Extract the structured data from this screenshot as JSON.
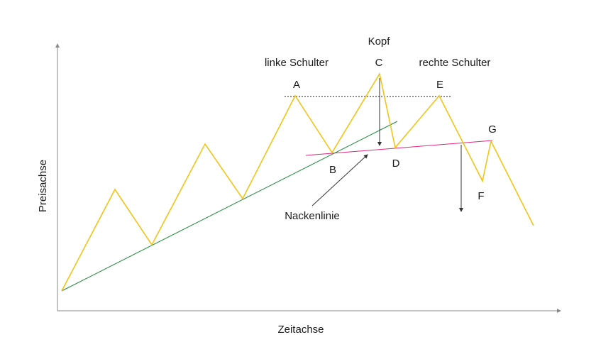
{
  "axes": {
    "x_label": "Zeitachse",
    "y_label": "Preisachse"
  },
  "labels": {
    "head": "Kopf",
    "left_shoulder": "linke Schulter",
    "right_shoulder": "rechte Schulter",
    "neckline": "Nackenlinie"
  },
  "points": {
    "A": "A",
    "B": "B",
    "C": "C",
    "D": "D",
    "E": "E",
    "F": "F",
    "G": "G"
  },
  "colors": {
    "price_line": "#f2c417",
    "trend_line": "#1e8a3a",
    "neckline": "#e0287a",
    "dotted_level": "#8a8a8a",
    "axis": "#8a8a8a",
    "arrow": "#333333"
  }
}
